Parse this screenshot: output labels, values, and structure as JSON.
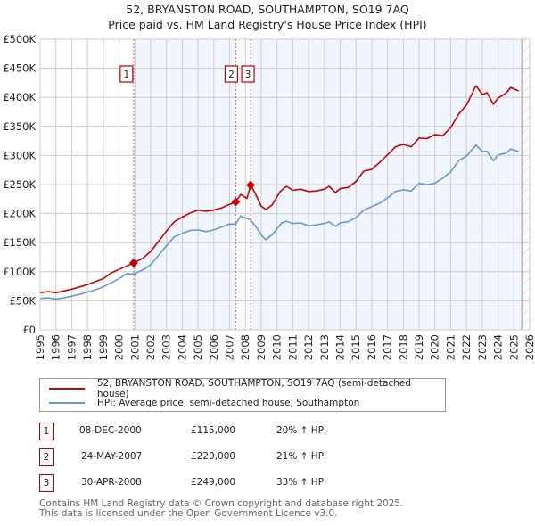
{
  "chart_data": {
    "type": "line",
    "title": "52, BRYANSTON ROAD, SOUTHAMPTON, SO19 7AQ",
    "subtitle": "Price paid vs. HM Land Registry's House Price Index (HPI)",
    "xlabel": "",
    "ylabel": "",
    "xlim": [
      1995,
      2026
    ],
    "ylim": [
      0,
      500000
    ],
    "grid": true,
    "x_ticks": [
      "1995",
      "1996",
      "1997",
      "1998",
      "1999",
      "2000",
      "2001",
      "2002",
      "2003",
      "2004",
      "2005",
      "2006",
      "2007",
      "2008",
      "2009",
      "2010",
      "2011",
      "2012",
      "2013",
      "2014",
      "2015",
      "2016",
      "2017",
      "2018",
      "2019",
      "2020",
      "2021",
      "2022",
      "2023",
      "2024",
      "2025",
      "2026"
    ],
    "y_ticks": [
      {
        "value": 0,
        "label": "£0"
      },
      {
        "value": 50000,
        "label": "£50K"
      },
      {
        "value": 100000,
        "label": "£100K"
      },
      {
        "value": 150000,
        "label": "£150K"
      },
      {
        "value": 200000,
        "label": "£200K"
      },
      {
        "value": 250000,
        "label": "£250K"
      },
      {
        "value": 300000,
        "label": "£300K"
      },
      {
        "value": 350000,
        "label": "£350K"
      },
      {
        "value": 400000,
        "label": "£400K"
      },
      {
        "value": 450000,
        "label": "£450K"
      },
      {
        "value": 500000,
        "label": "£500K"
      }
    ],
    "legend_position": "below",
    "series": [
      {
        "name": "52, BRYANSTON ROAD, SOUTHAMPTON, SO19 7AQ (semi-detached house)",
        "color": "#cc0000",
        "points": [
          [
            1995.0,
            64000
          ],
          [
            1995.5,
            66000
          ],
          [
            1996.0,
            64000
          ],
          [
            1996.5,
            67000
          ],
          [
            1997.0,
            70000
          ],
          [
            1997.5,
            74000
          ],
          [
            1998.0,
            78000
          ],
          [
            1998.5,
            83000
          ],
          [
            1999.0,
            88000
          ],
          [
            1999.5,
            98000
          ],
          [
            2000.0,
            104000
          ],
          [
            2000.5,
            110000
          ],
          [
            2000.92,
            115000
          ],
          [
            2001.5,
            123000
          ],
          [
            2002.0,
            135000
          ],
          [
            2002.5,
            152000
          ],
          [
            2003.0,
            170000
          ],
          [
            2003.5,
            186000
          ],
          [
            2004.0,
            194000
          ],
          [
            2004.5,
            201000
          ],
          [
            2005.0,
            206000
          ],
          [
            2005.5,
            204000
          ],
          [
            2006.0,
            206000
          ],
          [
            2006.5,
            210000
          ],
          [
            2007.0,
            216000
          ],
          [
            2007.39,
            220000
          ],
          [
            2007.7,
            233000
          ],
          [
            2008.1,
            226000
          ],
          [
            2008.33,
            249000
          ],
          [
            2008.6,
            236000
          ],
          [
            2009.0,
            213000
          ],
          [
            2009.3,
            207000
          ],
          [
            2009.7,
            215000
          ],
          [
            2010.2,
            238000
          ],
          [
            2010.6,
            247000
          ],
          [
            2011.0,
            240000
          ],
          [
            2011.5,
            242000
          ],
          [
            2012.0,
            238000
          ],
          [
            2012.5,
            239000
          ],
          [
            2013.0,
            242000
          ],
          [
            2013.3,
            247000
          ],
          [
            2013.7,
            236000
          ],
          [
            2014.0,
            243000
          ],
          [
            2014.5,
            245000
          ],
          [
            2015.0,
            255000
          ],
          [
            2015.5,
            273000
          ],
          [
            2016.0,
            276000
          ],
          [
            2016.5,
            288000
          ],
          [
            2017.0,
            301000
          ],
          [
            2017.5,
            315000
          ],
          [
            2018.0,
            319000
          ],
          [
            2018.5,
            315000
          ],
          [
            2019.0,
            330000
          ],
          [
            2019.5,
            329000
          ],
          [
            2020.0,
            336000
          ],
          [
            2020.5,
            334000
          ],
          [
            2021.0,
            348000
          ],
          [
            2021.5,
            371000
          ],
          [
            2022.0,
            387000
          ],
          [
            2022.6,
            420000
          ],
          [
            2023.0,
            405000
          ],
          [
            2023.3,
            408000
          ],
          [
            2023.7,
            388000
          ],
          [
            2024.0,
            399000
          ],
          [
            2024.5,
            407000
          ],
          [
            2024.8,
            417000
          ],
          [
            2025.3,
            411000
          ]
        ]
      },
      {
        "name": "HPI: Average price, semi-detached house, Southampton",
        "color": "#6a96d0",
        "points": [
          [
            1995.0,
            54000
          ],
          [
            1995.5,
            55000
          ],
          [
            1996.0,
            53000
          ],
          [
            1996.5,
            55000
          ],
          [
            1997.0,
            58000
          ],
          [
            1997.5,
            61000
          ],
          [
            1998.0,
            65000
          ],
          [
            1998.5,
            69000
          ],
          [
            1999.0,
            74000
          ],
          [
            1999.5,
            81000
          ],
          [
            2000.0,
            88000
          ],
          [
            2000.5,
            97000
          ],
          [
            2000.92,
            96000
          ],
          [
            2001.5,
            103000
          ],
          [
            2002.0,
            112000
          ],
          [
            2002.5,
            128000
          ],
          [
            2003.0,
            145000
          ],
          [
            2003.5,
            160000
          ],
          [
            2004.0,
            166000
          ],
          [
            2004.5,
            171000
          ],
          [
            2005.0,
            172000
          ],
          [
            2005.5,
            169000
          ],
          [
            2006.0,
            172000
          ],
          [
            2006.5,
            177000
          ],
          [
            2007.0,
            182000
          ],
          [
            2007.39,
            182000
          ],
          [
            2007.7,
            196000
          ],
          [
            2008.33,
            189000
          ],
          [
            2008.7,
            176000
          ],
          [
            2009.1,
            160000
          ],
          [
            2009.3,
            155000
          ],
          [
            2009.7,
            164000
          ],
          [
            2010.3,
            184000
          ],
          [
            2010.6,
            187000
          ],
          [
            2011.0,
            183000
          ],
          [
            2011.5,
            184000
          ],
          [
            2012.0,
            179000
          ],
          [
            2012.5,
            181000
          ],
          [
            2013.0,
            183000
          ],
          [
            2013.3,
            186000
          ],
          [
            2013.7,
            178000
          ],
          [
            2014.0,
            184000
          ],
          [
            2014.5,
            186000
          ],
          [
            2015.0,
            193000
          ],
          [
            2015.5,
            206000
          ],
          [
            2016.0,
            212000
          ],
          [
            2016.5,
            218000
          ],
          [
            2017.0,
            227000
          ],
          [
            2017.5,
            238000
          ],
          [
            2018.0,
            241000
          ],
          [
            2018.5,
            239000
          ],
          [
            2019.0,
            252000
          ],
          [
            2019.5,
            250000
          ],
          [
            2020.0,
            252000
          ],
          [
            2020.5,
            261000
          ],
          [
            2021.0,
            272000
          ],
          [
            2021.5,
            291000
          ],
          [
            2022.0,
            299000
          ],
          [
            2022.6,
            318000
          ],
          [
            2023.0,
            307000
          ],
          [
            2023.3,
            307000
          ],
          [
            2023.7,
            291000
          ],
          [
            2024.0,
            301000
          ],
          [
            2024.5,
            304000
          ],
          [
            2024.8,
            311000
          ],
          [
            2025.3,
            307000
          ]
        ]
      }
    ],
    "sales": [
      {
        "id": "1",
        "x": 2000.92,
        "value": 115000
      },
      {
        "id": "2",
        "x": 2007.39,
        "value": 220000
      },
      {
        "id": "3",
        "x": 2008.33,
        "value": 249000
      }
    ],
    "shaded_ranges": [
      [
        2000.92,
        2007.39
      ],
      [
        2008.33,
        2025.5
      ]
    ],
    "forecast_hatch_start": 2025.5
  },
  "legend": {
    "items": [
      {
        "label": "52, BRYANSTON ROAD, SOUTHAMPTON, SO19 7AQ (semi-detached house)",
        "color": "#cc0000"
      },
      {
        "label": "HPI: Average price, semi-detached house, Southampton",
        "color": "#6a96d0"
      }
    ]
  },
  "transactions": [
    {
      "num": "1",
      "date": "08-DEC-2000",
      "price": "£115,000",
      "hpi": "20% ↑ HPI"
    },
    {
      "num": "2",
      "date": "24-MAY-2007",
      "price": "£220,000",
      "hpi": "21% ↑ HPI"
    },
    {
      "num": "3",
      "date": "30-APR-2008",
      "price": "£249,000",
      "hpi": "33% ↑ HPI"
    }
  ],
  "footer": {
    "line1": "Contains HM Land Registry data © Crown copyright and database right 2025.",
    "line2": "This data is licensed under the Open Government Licence v3.0."
  }
}
